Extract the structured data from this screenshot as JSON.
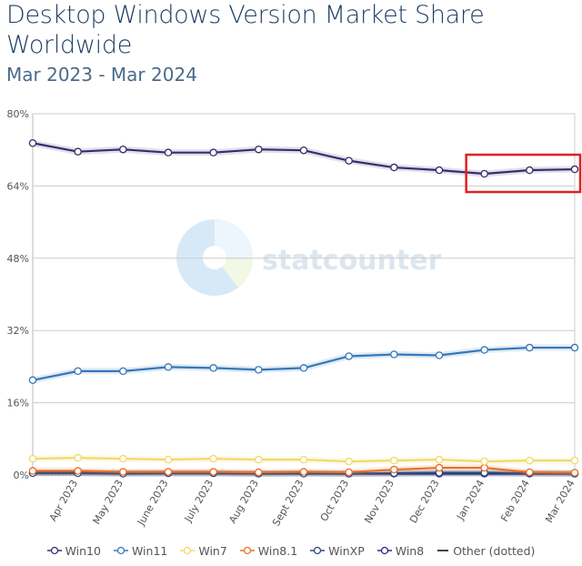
{
  "chart_data": {
    "type": "line",
    "title": "Desktop Windows Version Market Share Worldwide",
    "subtitle": "Mar 2023 - Mar 2024",
    "xlabel": "",
    "ylabel": "",
    "ylim": [
      0,
      80
    ],
    "yticks": [
      "0%",
      "16%",
      "32%",
      "48%",
      "64%",
      "80%"
    ],
    "ytick_values": [
      0,
      16,
      32,
      48,
      64,
      80
    ],
    "grid": true,
    "legend_position": "bottom",
    "categories": [
      "Mar 2023",
      "Apr 2023",
      "May 2023",
      "June 2023",
      "July 2023",
      "Aug 2023",
      "Sept 2023",
      "Oct 2023",
      "Nov 2023",
      "Dec 2023",
      "Jan 2024",
      "Feb 2024",
      "Mar 2024"
    ],
    "x_tick_labels": [
      "Apr 2023",
      "May 2023",
      "June 2023",
      "July 2023",
      "Aug 2023",
      "Sept 2023",
      "Oct 2023",
      "Nov 2023",
      "Dec 2023",
      "Jan 2024",
      "Feb 2024",
      "Mar 2024"
    ],
    "series": [
      {
        "name": "Win10",
        "color": "#3d2a6e",
        "values": [
          73.5,
          71.6,
          72.1,
          71.4,
          71.4,
          72.1,
          71.9,
          69.6,
          68.1,
          67.5,
          66.7,
          67.5,
          67.7
        ]
      },
      {
        "name": "Win11",
        "color": "#3578b8",
        "values": [
          21.0,
          23.0,
          23.0,
          23.9,
          23.7,
          23.3,
          23.7,
          26.3,
          26.7,
          26.5,
          27.7,
          28.2,
          28.2
        ]
      },
      {
        "name": "Win7",
        "color": "#f3d96a",
        "values": [
          3.6,
          3.8,
          3.6,
          3.4,
          3.6,
          3.4,
          3.4,
          3.0,
          3.2,
          3.4,
          3.0,
          3.2,
          3.2
        ]
      },
      {
        "name": "Win8.1",
        "color": "#e8702a",
        "values": [
          0.9,
          0.9,
          0.7,
          0.7,
          0.7,
          0.6,
          0.7,
          0.6,
          1.2,
          1.6,
          1.6,
          0.6,
          0.5
        ]
      },
      {
        "name": "WinXP",
        "color": "#2b4a7a",
        "values": [
          0.4,
          0.4,
          0.3,
          0.4,
          0.4,
          0.3,
          0.3,
          0.3,
          0.4,
          0.5,
          0.5,
          0.4,
          0.3
        ]
      },
      {
        "name": "Win8",
        "color": "#2c2a7a",
        "values": [
          0.5,
          0.5,
          0.4,
          0.4,
          0.4,
          0.3,
          0.4,
          0.3,
          0.3,
          0.3,
          0.3,
          0.3,
          0.3
        ]
      },
      {
        "name": "Other (dotted)",
        "color": "#333333",
        "dotted": true,
        "values": [
          0.3,
          0.3,
          0.3,
          0.3,
          0.3,
          0.3,
          0.3,
          0.3,
          0.3,
          0.3,
          0.3,
          0.3,
          0.3
        ]
      }
    ],
    "annotation": {
      "type": "highlight-box",
      "color": "#e02020",
      "from": "Jan 2024",
      "to": "Mar 2024",
      "series": "Win10"
    },
    "watermark": "statcounter"
  }
}
